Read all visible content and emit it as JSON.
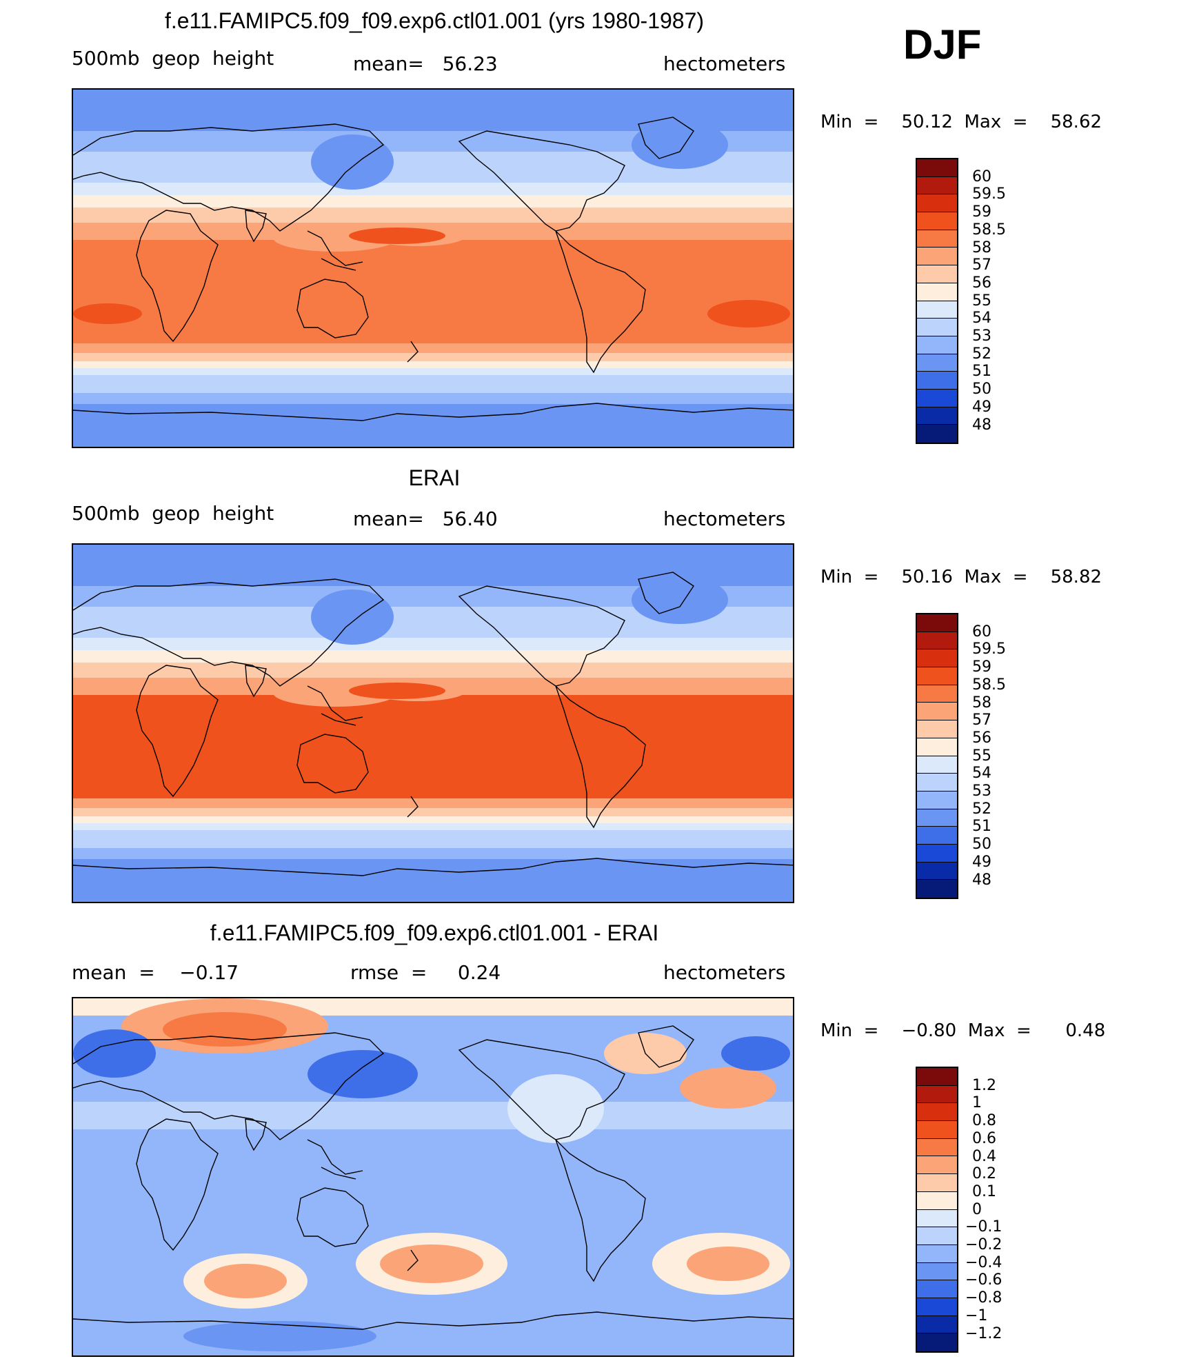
{
  "season": "DJF",
  "chart_data": [
    {
      "type": "heatmap",
      "title": "f.e11.FAMIPC5.f09_f09.exp6.ctl01.001 (yrs 1980-1987)",
      "left_label": "500mb  geop  height",
      "center_label": "mean=   56.23",
      "right_label": "hectometers",
      "min_label": "Min  =    50.12  Max  =    58.62",
      "min": 50.12,
      "max": 58.62,
      "mean": 56.23,
      "units": "hectometers",
      "colorbar_labels": [
        "60",
        "59.5",
        "59",
        "58.5",
        "58",
        "57",
        "56",
        "55",
        "54",
        "53",
        "52",
        "51",
        "50",
        "49",
        "48"
      ],
      "colorbar_colors": [
        "#7b0a0a",
        "#b21a0d",
        "#d8300f",
        "#f0521e",
        "#f77a45",
        "#fba477",
        "#fdcaaa",
        "#fdeedd",
        "#dce9fb",
        "#bcd3fb",
        "#93b5f9",
        "#6b95f2",
        "#3e6fe8",
        "#1a49d8",
        "#0a2ba8",
        "#061a78"
      ],
      "palette_index": {
        "polar": 11,
        "mid": 8,
        "sub": 6,
        "trop": 4,
        "max": 3
      }
    },
    {
      "type": "heatmap",
      "title": "ERAI",
      "left_label": "500mb  geop  height",
      "center_label": "mean=   56.40",
      "right_label": "hectometers",
      "min_label": "Min  =    50.16  Max  =    58.82",
      "min": 50.16,
      "max": 58.82,
      "mean": 56.4,
      "units": "hectometers",
      "colorbar_labels": [
        "60",
        "59.5",
        "59",
        "58.5",
        "58",
        "57",
        "56",
        "55",
        "54",
        "53",
        "52",
        "51",
        "50",
        "49",
        "48"
      ],
      "colorbar_colors": [
        "#7b0a0a",
        "#b21a0d",
        "#d8300f",
        "#f0521e",
        "#f77a45",
        "#fba477",
        "#fdcaaa",
        "#fdeedd",
        "#dce9fb",
        "#bcd3fb",
        "#93b5f9",
        "#6b95f2",
        "#3e6fe8",
        "#1a49d8",
        "#0a2ba8",
        "#061a78"
      ],
      "palette_index": {
        "polar": 11,
        "mid": 8,
        "sub": 6,
        "trop": 3,
        "max": 3
      }
    },
    {
      "type": "heatmap",
      "title": "f.e11.FAMIPC5.f09_f09.exp6.ctl01.001 - ERAI",
      "left_label": "mean  =    −0.17",
      "center_label": "rmse  =     0.24",
      "right_label": "hectometers",
      "min_label": "Min  =    −0.80  Max  =      0.48",
      "min": -0.8,
      "max": 0.48,
      "mean": -0.17,
      "rmse": 0.24,
      "units": "hectometers",
      "colorbar_labels": [
        "1.2",
        "1",
        "0.8",
        "0.6",
        "0.4",
        "0.2",
        "0.1",
        "0",
        "−0.1",
        "−0.2",
        "−0.4",
        "−0.6",
        "−0.8",
        "−1",
        "−1.2"
      ],
      "colorbar_colors": [
        "#7b0a0a",
        "#b21a0d",
        "#d8300f",
        "#f0521e",
        "#f77a45",
        "#fba477",
        "#fdcaaa",
        "#fdeedd",
        "#dce9fb",
        "#bcd3fb",
        "#93b5f9",
        "#6b95f2",
        "#3e6fe8",
        "#1a49d8",
        "#0a2ba8",
        "#061a78"
      ]
    }
  ]
}
